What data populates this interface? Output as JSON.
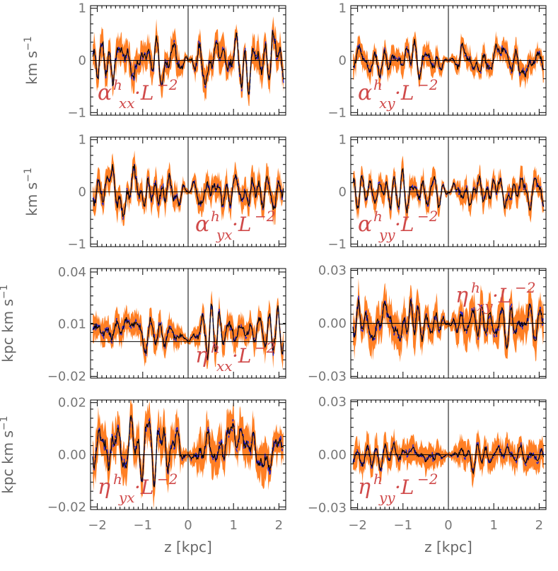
{
  "chart_data": {
    "type": "line",
    "description_of_series": [
      "band",
      "solid",
      "dashed"
    ],
    "colors": {
      "band": "#ff7f24",
      "solid": "#000000",
      "dashed": "#2222cc",
      "label": "#d04a4a",
      "axis": "#000000",
      "tick_text": "#777777"
    },
    "x_label": "z [kpc]",
    "x_ticks": [
      "−2",
      "−1",
      "0",
      "1",
      "2"
    ],
    "x_tick_values": [
      -2,
      -1,
      0,
      1,
      2
    ],
    "xlim": [
      -2.15,
      2.15
    ],
    "y_label_alpha": "km s",
    "y_label_eta": "kpc km s",
    "y_label_exp": "−1",
    "grid": false,
    "panels": [
      {
        "id": "a_xx",
        "sym": "α",
        "sup": "h",
        "sub": "xx",
        "suffix": "·L",
        "exp": "−2",
        "label_pos": "bottom-left",
        "ylim": [
          -1.05,
          1.05
        ],
        "yticks": [
          "1",
          "0",
          "−1"
        ],
        "ytick_values": [
          1,
          0,
          -1
        ],
        "zero_line": 0,
        "left": {
          "amp": 0.42,
          "seed": 3
        },
        "right": {
          "amp": 0.48,
          "seed": 7
        },
        "center": 0.0,
        "band": 0.22
      },
      {
        "id": "a_xy",
        "sym": "α",
        "sup": "h",
        "sub": "xy",
        "suffix": "·L",
        "exp": "−2",
        "label_pos": "bottom-left",
        "ylim": [
          -1.05,
          1.05
        ],
        "yticks": [
          "1",
          "0",
          "−1"
        ],
        "ytick_values": [
          1,
          0,
          -1
        ],
        "zero_line": 0,
        "left": {
          "amp": 0.3,
          "seed": 11
        },
        "right": {
          "amp": 0.32,
          "seed": 13
        },
        "center": 0.0,
        "band": 0.17
      },
      {
        "id": "a_yx",
        "sym": "α",
        "sup": "h",
        "sub": "yx",
        "suffix": "·L",
        "exp": "−2",
        "label_pos": "bottom-right",
        "ylim": [
          -1.05,
          1.05
        ],
        "yticks": [
          "1",
          "0",
          "−1"
        ],
        "ytick_values": [
          1,
          0,
          -1
        ],
        "zero_line": 0,
        "left": {
          "amp": 0.38,
          "seed": 17
        },
        "right": {
          "amp": 0.3,
          "seed": 19
        },
        "center": 0.0,
        "band": 0.2
      },
      {
        "id": "a_yy",
        "sym": "α",
        "sup": "h",
        "sub": "yy",
        "suffix": "·L",
        "exp": "−2",
        "label_pos": "bottom-left",
        "ylim": [
          -1.05,
          1.05
        ],
        "yticks": [
          "1",
          "0",
          "−1"
        ],
        "ytick_values": [
          1,
          0,
          -1
        ],
        "zero_line": 0,
        "left": {
          "amp": 0.32,
          "seed": 23
        },
        "right": {
          "amp": 0.28,
          "seed": 29
        },
        "center": 0.0,
        "band": 0.17
      },
      {
        "id": "e_xx",
        "sym": "η",
        "sup": "h",
        "sub": "xx",
        "suffix": "·L",
        "exp": "−2",
        "label_pos": "bottom-right",
        "ylim": [
          -0.021,
          0.042
        ],
        "yticks": [
          "0.04",
          "0.01",
          "−0.02"
        ],
        "ytick_values": [
          0.04,
          0.01,
          -0.02
        ],
        "zero_line": 0,
        "left": {
          "amp": 0.009,
          "seed": 31
        },
        "right": {
          "amp": 0.011,
          "seed": 37
        },
        "center": 0.006,
        "band": 0.006
      },
      {
        "id": "e_xy",
        "sym": "η",
        "sup": "h",
        "sub": "xy",
        "suffix": "·L",
        "exp": "−2",
        "label_pos": "top-right",
        "ylim": [
          -0.031,
          0.031
        ],
        "yticks": [
          "0.03",
          "0.00",
          "−0.03"
        ],
        "ytick_values": [
          0.03,
          0.0,
          -0.03
        ],
        "zero_line": 0,
        "left": {
          "amp": 0.01,
          "seed": 41
        },
        "right": {
          "amp": 0.009,
          "seed": 43
        },
        "center": 0.0,
        "band": 0.008
      },
      {
        "id": "e_yx",
        "sym": "η",
        "sup": "h",
        "sub": "yx",
        "suffix": "·L",
        "exp": "−2",
        "label_pos": "bottom-left",
        "ylim": [
          -0.021,
          0.021
        ],
        "yticks": [
          "0.02",
          "0.00",
          "−0.02"
        ],
        "ytick_values": [
          0.02,
          0.0,
          -0.02
        ],
        "zero_line": 0,
        "left": {
          "amp": 0.009,
          "seed": 47
        },
        "right": {
          "amp": 0.008,
          "seed": 53
        },
        "center": 0.003,
        "band": 0.006
      },
      {
        "id": "e_yy",
        "sym": "η",
        "sup": "h",
        "sub": "yy",
        "suffix": "·L",
        "exp": "−2",
        "label_pos": "bottom-left",
        "ylim": [
          -0.031,
          0.031
        ],
        "yticks": [
          "0.03",
          "0.00",
          "−0.03"
        ],
        "ytick_values": [
          0.03,
          0.0,
          -0.03
        ],
        "zero_line": 0,
        "left": {
          "amp": 0.006,
          "seed": 59
        },
        "right": {
          "amp": 0.006,
          "seed": 61
        },
        "center": 0.0,
        "band": 0.006
      }
    ]
  }
}
